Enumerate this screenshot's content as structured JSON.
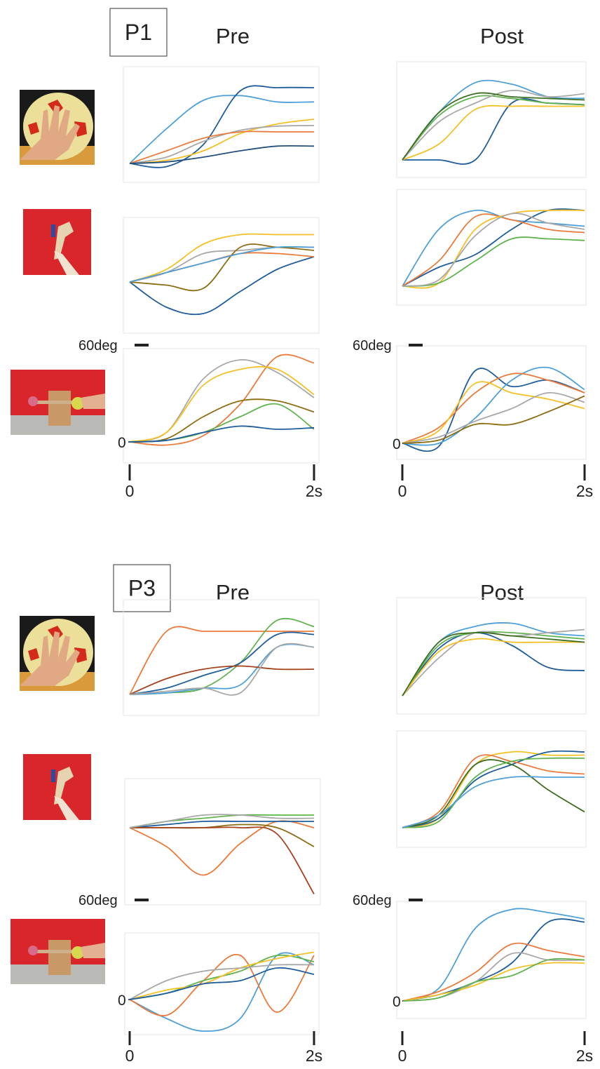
{
  "figures": [
    {
      "label": "P1",
      "columns": [
        "Pre",
        "Post"
      ],
      "scale_label": "60deg",
      "y_zero_label": "0",
      "x_ticks": [
        {
          "value": 0,
          "label": "0"
        },
        {
          "value": 2,
          "label": "2s"
        }
      ],
      "t_s": [
        0,
        0.4,
        0.8,
        1.2,
        1.6,
        2
      ],
      "rows": [
        {
          "pre": {
            "lines": [
              {
                "color": "#4fa0d8",
                "values": [
                  0,
                  110,
                  200,
                  215,
                  195,
                  195
                ]
              },
              {
                "color": "#1f5d9c",
                "values": [
                  0,
                  -10,
                  60,
                  230,
                  240,
                  240
                ]
              },
              {
                "color": "#f5c026",
                "values": [
                  0,
                  10,
                  40,
                  95,
                  125,
                  140
                ]
              },
              {
                "color": "#a8a8a8",
                "values": [
                  0,
                  20,
                  70,
                  105,
                  118,
                  120
                ]
              },
              {
                "color": "#ec7a3c",
                "values": [
                  0,
                  40,
                  80,
                  100,
                  100,
                  100
                ]
              },
              {
                "color": "#22507f",
                "values": [
                  0,
                  5,
                  20,
                  40,
                  55,
                  55
                ]
              }
            ]
          },
          "post": {
            "lines": [
              {
                "color": "#4fa0d8",
                "values": [
                  0,
                  150,
                  245,
                  240,
                  200,
                  195
                ]
              },
              {
                "color": "#1f5d9c",
                "values": [
                  0,
                  0,
                  0,
                  180,
                  180,
                  175
                ]
              },
              {
                "color": "#f5c026",
                "values": [
                  0,
                  50,
                  160,
                  170,
                  170,
                  170
                ]
              },
              {
                "color": "#62b34f",
                "values": [
                  0,
                  140,
                  200,
                  195,
                  180,
                  175
                ]
              },
              {
                "color": "#a8a8a8",
                "values": [
                  0,
                  120,
                  180,
                  220,
                  200,
                  210
                ]
              },
              {
                "color": "#3d6e22",
                "values": [
                  0,
                  150,
                  210,
                  200,
                  195,
                  190
                ]
              }
            ]
          }
        },
        {
          "pre": {
            "lines": [
              {
                "color": "#f5c026",
                "values": [
                  0,
                  40,
                  120,
                  150,
                  150,
                  150
                ]
              },
              {
                "color": "#1f5d9c",
                "values": [
                  0,
                  -80,
                  -100,
                  -30,
                  40,
                  80
                ]
              },
              {
                "color": "#a8a8a8",
                "values": [
                  0,
                  30,
                  90,
                  100,
                  110,
                  110
                ]
              },
              {
                "color": "#ec7a3c",
                "values": [
                  0,
                  30,
                  60,
                  90,
                  90,
                  80
                ]
              },
              {
                "color": "#8c6d12",
                "values": [
                  0,
                  -10,
                  -20,
                  110,
                  110,
                  100
                ]
              },
              {
                "color": "#4fa0d8",
                "values": [
                  0,
                  30,
                  60,
                  90,
                  110,
                  110
                ]
              }
            ]
          },
          "post": {
            "lines": [
              {
                "color": "#4fa0d8",
                "values": [
                  0,
                  180,
                  240,
                  210,
                  200,
                  190
                ]
              },
              {
                "color": "#1f5d9c",
                "values": [
                  0,
                  60,
                  100,
                  180,
                  240,
                  240
                ]
              },
              {
                "color": "#ec7a3c",
                "values": [
                  0,
                  80,
                  220,
                  210,
                  180,
                  170
                ]
              },
              {
                "color": "#f5c026",
                "values": [
                  0,
                  10,
                  180,
                  230,
                  240,
                  240
                ]
              },
              {
                "color": "#62b34f",
                "values": [
                  0,
                  10,
                  80,
                  150,
                  150,
                  145
                ]
              },
              {
                "color": "#a8a8a8",
                "values": [
                  0,
                  20,
                  160,
                  230,
                  200,
                  180
                ]
              }
            ]
          }
        },
        {
          "pre": {
            "lines": [
              {
                "color": "#a8a8a8",
                "values": [
                  0,
                  30,
                  200,
                  260,
                  220,
                  140
                ]
              },
              {
                "color": "#ec7a3c",
                "values": [
                  0,
                  -10,
                  20,
                  120,
                  270,
                  250
                ]
              },
              {
                "color": "#f5c026",
                "values": [
                  0,
                  30,
                  180,
                  230,
                  230,
                  150
                ]
              },
              {
                "color": "#8c6d12",
                "values": [
                  0,
                  10,
                  80,
                  130,
                  130,
                  95
                ]
              },
              {
                "color": "#62b34f",
                "values": [
                  0,
                  5,
                  30,
                  80,
                  120,
                  40
                ]
              },
              {
                "color": "#1f5d9c",
                "values": [
                  0,
                  5,
                  30,
                  50,
                  40,
                  45
                ]
              }
            ]
          },
          "post": {
            "lines": [
              {
                "color": "#1f5d9c",
                "values": [
                  0,
                  -10,
                  230,
                  180,
                  200,
                  160
                ]
              },
              {
                "color": "#4fa0d8",
                "values": [
                  0,
                  0,
                  80,
                  200,
                  240,
                  170
                ]
              },
              {
                "color": "#ec7a3c",
                "values": [
                  0,
                  50,
                  160,
                  220,
                  200,
                  160
                ]
              },
              {
                "color": "#f5c026",
                "values": [
                  0,
                  40,
                  190,
                  160,
                  140,
                  110
                ]
              },
              {
                "color": "#a8a8a8",
                "values": [
                  0,
                  20,
                  70,
                  110,
                  160,
                  130
                ]
              },
              {
                "color": "#8c6d12",
                "values": [
                  0,
                  10,
                  60,
                  60,
                  100,
                  150
                ]
              }
            ]
          }
        }
      ]
    },
    {
      "label": "P3",
      "columns": [
        "Pre",
        "Post"
      ],
      "scale_label": "60deg",
      "y_zero_label": "0",
      "x_ticks": [
        {
          "value": 0,
          "label": "0"
        },
        {
          "value": 2,
          "label": "2s"
        }
      ],
      "t_s": [
        0,
        0.4,
        0.8,
        1.2,
        1.6,
        2
      ],
      "rows": [
        {
          "pre": {
            "lines": [
              {
                "color": "#ec7a3c",
                "values": [
                  0,
                  200,
                  200,
                  200,
                  200,
                  200
                ]
              },
              {
                "color": "#62b34f",
                "values": [
                  0,
                  5,
                  20,
                  100,
                  235,
                  215
                ]
              },
              {
                "color": "#1f5d9c",
                "values": [
                  0,
                  20,
                  60,
                  100,
                  190,
                  190
                ]
              },
              {
                "color": "#4fa0d8",
                "values": [
                  0,
                  5,
                  20,
                  30,
                  150,
                  150
                ]
              },
              {
                "color": "#a4431f",
                "values": [
                  0,
                  50,
                  80,
                  90,
                  80,
                  80
                ]
              },
              {
                "color": "#a8a8a8",
                "values": [
                  0,
                  10,
                  20,
                  5,
                  150,
                  150
                ]
              }
            ]
          },
          "post": {
            "lines": [
              {
                "color": "#4fa0d8",
                "values": [
                  0,
                  170,
                  220,
                  230,
                  200,
                  190
                ]
              },
              {
                "color": "#1f5d9c",
                "values": [
                  0,
                  150,
                  200,
                  160,
                  90,
                  80
                ]
              },
              {
                "color": "#62b34f",
                "values": [
                  0,
                  160,
                  200,
                  200,
                  190,
                  180
                ]
              },
              {
                "color": "#a8a8a8",
                "values": [
                  0,
                  120,
                  200,
                  190,
                  200,
                  210
                ]
              },
              {
                "color": "#f5c026",
                "values": [
                  0,
                  140,
                  180,
                  170,
                  170,
                  170
                ]
              },
              {
                "color": "#3d6e22",
                "values": [
                  0,
                  170,
                  200,
                  190,
                  180,
                  170
                ]
              }
            ]
          }
        },
        {
          "pre": {
            "lines": [
              {
                "color": "#62b34f",
                "values": [
                  0,
                  20,
                  30,
                  40,
                  40,
                  40
                ]
              },
              {
                "color": "#ec7a3c",
                "values": [
                  0,
                  -60,
                  -150,
                  -50,
                  20,
                  0
                ]
              },
              {
                "color": "#1f5d9c",
                "values": [
                  0,
                  10,
                  20,
                  20,
                  20,
                  20
                ]
              },
              {
                "color": "#8c6d12",
                "values": [
                  0,
                  0,
                  0,
                  10,
                  0,
                  -60
                ]
              },
              {
                "color": "#a4431f",
                "values": [
                  0,
                  0,
                  0,
                  0,
                  -20,
                  -210
                ]
              },
              {
                "color": "#a8a8a8",
                "values": [
                  0,
                  20,
                  40,
                  40,
                  30,
                  30
                ]
              }
            ]
          },
          "post": {
            "lines": [
              {
                "color": "#f5c026",
                "values": [
                  0,
                  30,
                  200,
                  240,
                  230,
                  230
                ]
              },
              {
                "color": "#1f5d9c",
                "values": [
                  0,
                  30,
                  150,
                  200,
                  240,
                  240
                ]
              },
              {
                "color": "#ec7a3c",
                "values": [
                  0,
                  50,
                  220,
                  210,
                  180,
                  170
                ]
              },
              {
                "color": "#3d6e22",
                "values": [
                  0,
                  40,
                  200,
                  200,
                  120,
                  50
                ]
              },
              {
                "color": "#62b34f",
                "values": [
                  0,
                  20,
                  160,
                  210,
                  220,
                  220
                ]
              },
              {
                "color": "#4fa0d8",
                "values": [
                  0,
                  40,
                  130,
                  160,
                  160,
                  160
                ]
              }
            ]
          }
        },
        {
          "pre": {
            "lines": [
              {
                "color": "#4fa0d8",
                "values": [
                  0,
                  -60,
                  -100,
                  -60,
                  140,
                  110
                ]
              },
              {
                "color": "#ec7a3c",
                "values": [
                  0,
                  -50,
                  60,
                  140,
                  -40,
                  140
                ]
              },
              {
                "color": "#62b34f",
                "values": [
                  0,
                  20,
                  60,
                  90,
                  140,
                  120
                ]
              },
              {
                "color": "#f5c026",
                "values": [
                  0,
                  30,
                  50,
                  100,
                  130,
                  150
                ]
              },
              {
                "color": "#a8a8a8",
                "values": [
                  0,
                  60,
                  90,
                  100,
                  110,
                  110
                ]
              },
              {
                "color": "#1f5d9c",
                "values": [
                  0,
                  20,
                  50,
                  60,
                  100,
                  80
                ]
              }
            ]
          },
          "post": {
            "lines": [
              {
                "color": "#4fa0d8",
                "values": [
                  0,
                  40,
                  230,
                  290,
                  280,
                  260
                ]
              },
              {
                "color": "#1f5d9c",
                "values": [
                  0,
                  20,
                  60,
                  120,
                  250,
                  250
                ]
              },
              {
                "color": "#ec7a3c",
                "values": [
                  0,
                  30,
                  90,
                  180,
                  160,
                  140
                ]
              },
              {
                "color": "#a8a8a8",
                "values": [
                  0,
                  10,
                  60,
                  150,
                  130,
                  130
                ]
              },
              {
                "color": "#f5c026",
                "values": [
                  0,
                  20,
                  50,
                  100,
                  120,
                  120
                ]
              },
              {
                "color": "#62b34f",
                "values": [
                  0,
                  10,
                  60,
                  80,
                  130,
                  130
                ]
              }
            ]
          }
        }
      ]
    }
  ]
}
